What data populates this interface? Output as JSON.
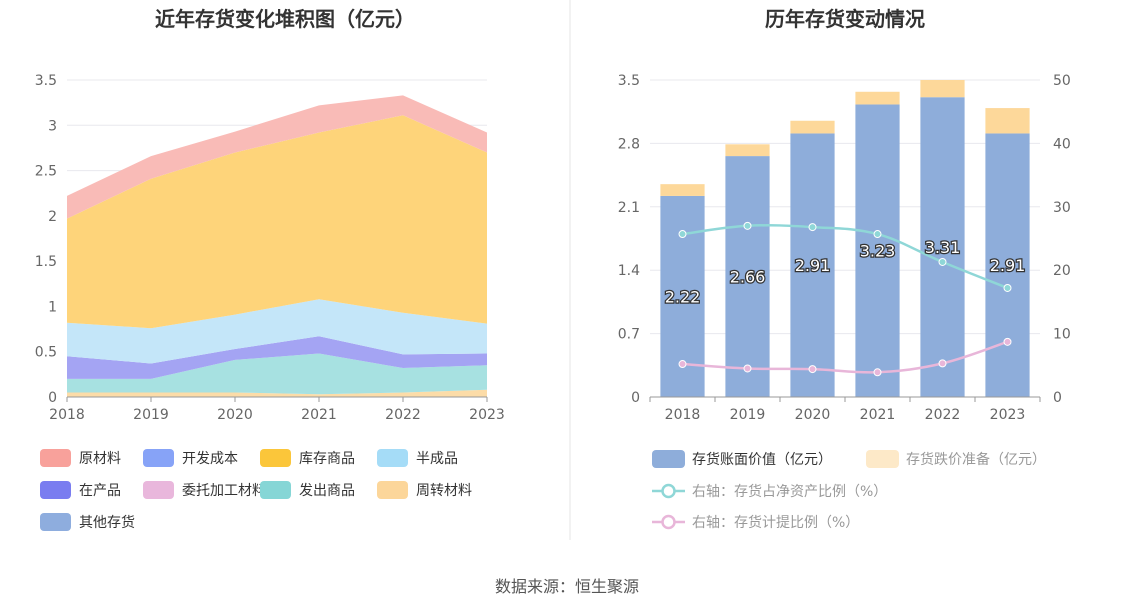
{
  "source": "数据来源：恒生聚源",
  "chart_data": [
    {
      "type": "area",
      "stacked": true,
      "title": "近年存货变化堆积图（亿元）",
      "categories": [
        "2018",
        "2019",
        "2020",
        "2021",
        "2022",
        "2023"
      ],
      "ylim": [
        0,
        3.5
      ],
      "yticks": [
        "0",
        "0.5",
        "1",
        "1.5",
        "2",
        "2.5",
        "3",
        "3.5"
      ],
      "series": [
        {
          "name": "周转材料",
          "color": "#fcdca8",
          "values": [
            0.05,
            0.05,
            0.05,
            0.03,
            0.05,
            0.08
          ]
        },
        {
          "name": "发出商品",
          "color": "#a7e1e1",
          "values": [
            0.15,
            0.15,
            0.36,
            0.45,
            0.27,
            0.27
          ]
        },
        {
          "name": "在产品",
          "color": "#a4a4f3",
          "values": [
            0.25,
            0.17,
            0.12,
            0.19,
            0.15,
            0.13
          ]
        },
        {
          "name": "半成品",
          "color": "#c4e6f9",
          "values": [
            0.37,
            0.39,
            0.38,
            0.41,
            0.46,
            0.33
          ]
        },
        {
          "name": "库存商品",
          "color": "#fed47a",
          "values": [
            1.15,
            1.65,
            1.79,
            1.84,
            2.18,
            1.89
          ]
        },
        {
          "name": "原材料",
          "color": "#f9bbb7",
          "values": [
            0.25,
            0.25,
            0.23,
            0.3,
            0.22,
            0.22
          ]
        }
      ],
      "legend": [
        {
          "name": "原材料",
          "color": "#f8a19b"
        },
        {
          "name": "开发成本",
          "color": "#87a3f7"
        },
        {
          "name": "库存商品",
          "color": "#fbc63a"
        },
        {
          "name": "半成品",
          "color": "#a5dcf7"
        },
        {
          "name": "在产品",
          "color": "#7a7df0"
        },
        {
          "name": "委托加工材料",
          "color": "#e9b7dc"
        },
        {
          "name": "发出商品",
          "color": "#86d6d6"
        },
        {
          "name": "周转材料",
          "color": "#fcd69a"
        },
        {
          "name": "其他存货",
          "color": "#8eadde"
        }
      ]
    },
    {
      "type": "bar+line",
      "title": "历年存货变动情况",
      "categories": [
        "2018",
        "2019",
        "2020",
        "2021",
        "2022",
        "2023"
      ],
      "ylim_left": [
        0,
        3.5
      ],
      "yticks_left": [
        "0",
        "0.7",
        "1.4",
        "2.1",
        "2.8",
        "3.5"
      ],
      "ylim_right": [
        0,
        50
      ],
      "yticks_right": [
        "0",
        "10",
        "20",
        "30",
        "40",
        "50"
      ],
      "bars": [
        {
          "name": "存货账面价值（亿元）",
          "color": "#8eadda",
          "values": [
            2.22,
            2.66,
            2.91,
            3.23,
            3.31,
            2.91
          ]
        },
        {
          "name": "存货跌价准备（亿元）",
          "color": "#fdd89a",
          "values": [
            0.13,
            0.13,
            0.14,
            0.14,
            0.19,
            0.28
          ]
        }
      ],
      "bar_labels": [
        "2.22",
        "2.66",
        "2.91",
        "3.23",
        "3.31",
        "2.91"
      ],
      "lines": [
        {
          "name": "右轴：存货占净资产比例（%）",
          "color": "#8fd7d7",
          "values": [
            25.7,
            27.0,
            26.8,
            25.7,
            21.3,
            17.2
          ]
        },
        {
          "name": "右轴：存货计提比例（%）",
          "color": "#e8b6d9",
          "values": [
            5.2,
            4.5,
            4.4,
            3.9,
            5.3,
            8.7
          ]
        }
      ],
      "legend": [
        {
          "name": "存货账面价值（亿元）",
          "color": "#8eadda",
          "kind": "bar",
          "dim": false
        },
        {
          "name": "存货跌价准备（亿元）",
          "color": "#fde9c8",
          "kind": "bar",
          "dim": true
        },
        {
          "name": "右轴：存货占净资产比例（%）",
          "color": "#8fd7d7",
          "kind": "line",
          "dim": true
        },
        {
          "name": "右轴：存货计提比例（%）",
          "color": "#e8b6d9",
          "kind": "line",
          "dim": true
        }
      ]
    }
  ]
}
